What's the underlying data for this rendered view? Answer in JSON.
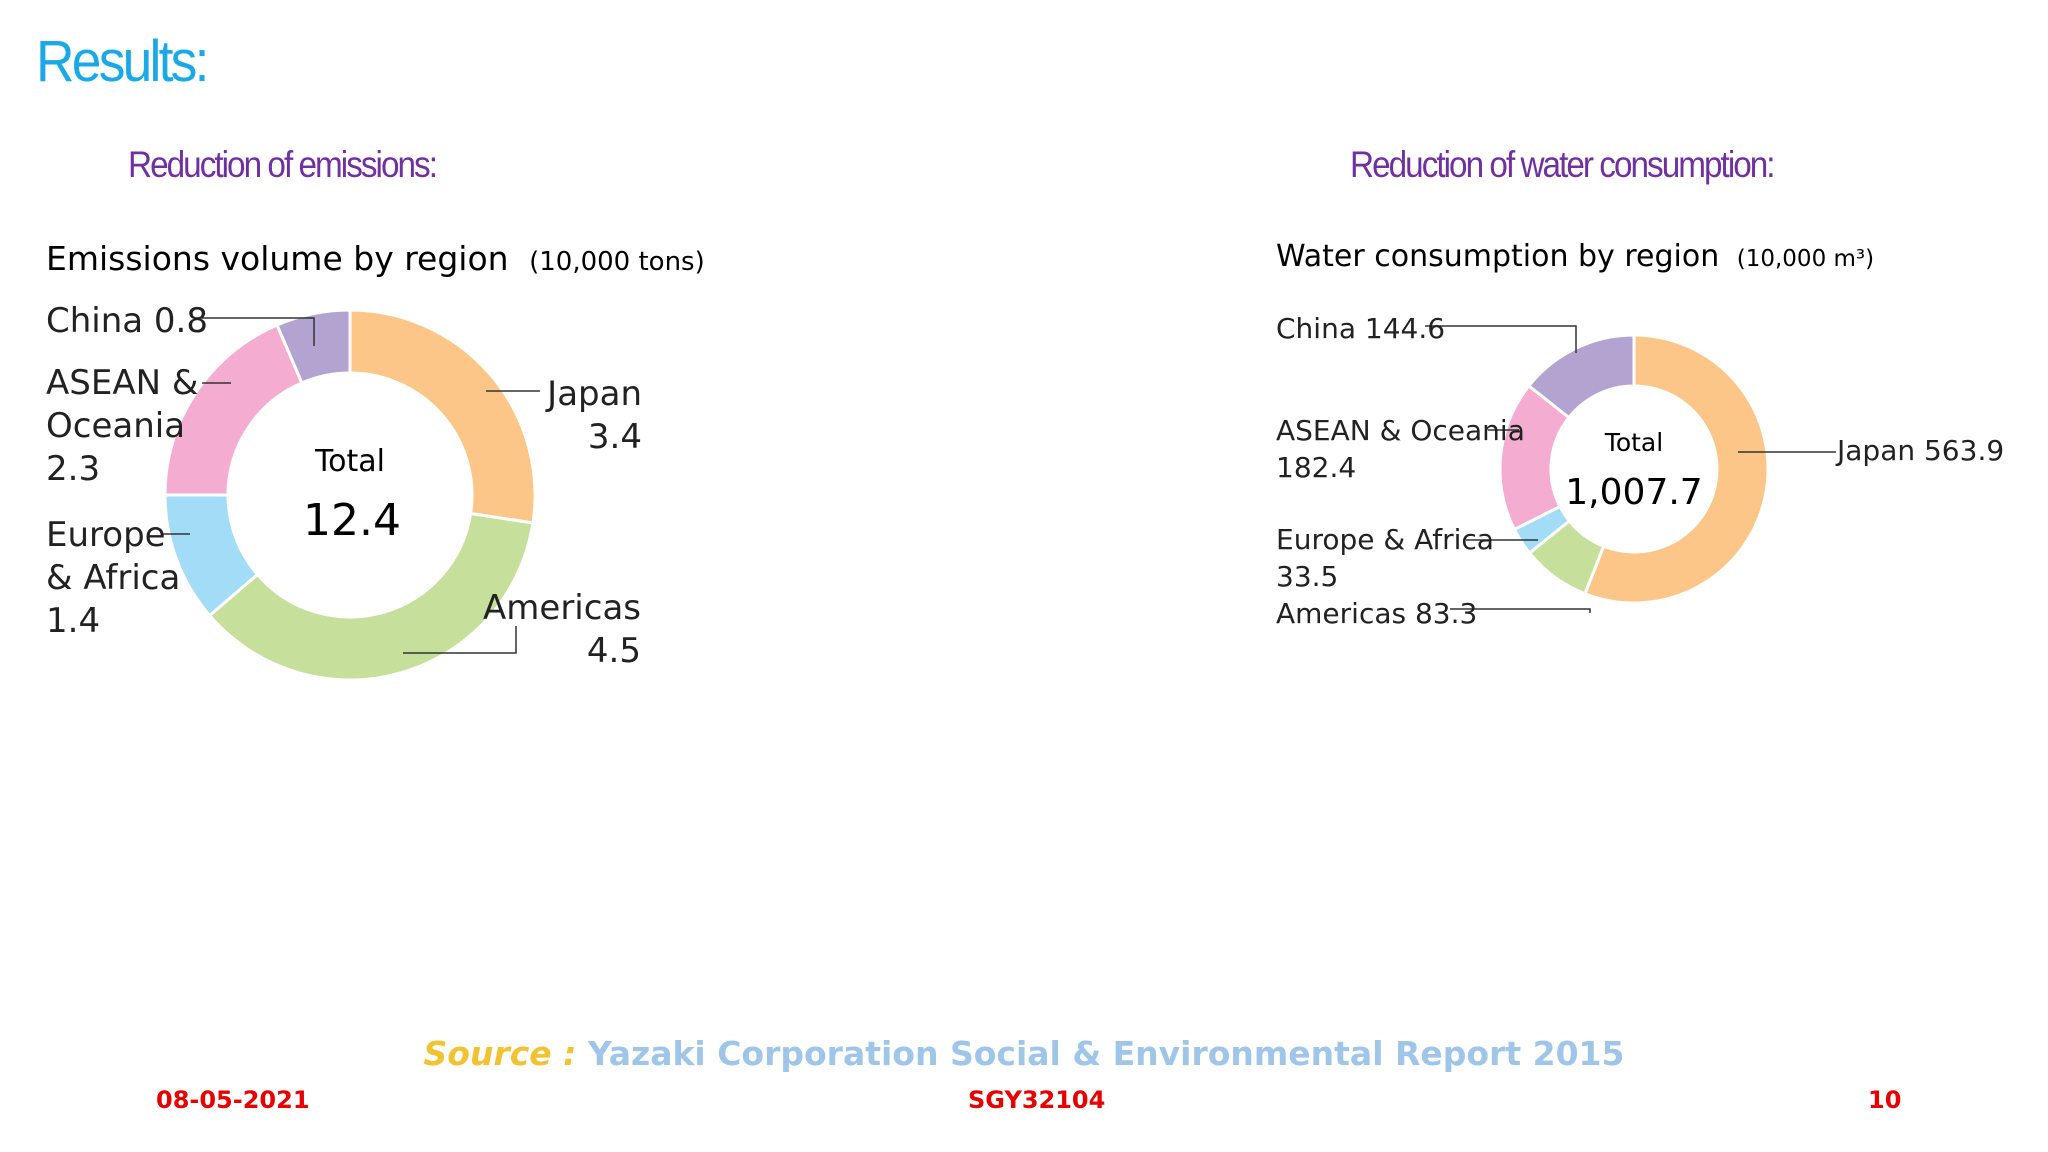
{
  "slide": {
    "title": "Results:",
    "title_color": "#1aa9e6",
    "heading_color": "#7030a0",
    "label_color": "#222222",
    "leader_color": "#333333"
  },
  "charts": [
    {
      "heading": "Reduction of emissions:",
      "chart_title": "Emissions volume by region",
      "chart_unit": "(10,000 tons)",
      "center_label": "Total",
      "center_value": "12.4"
    },
    {
      "heading": "Reduction of water consumption:",
      "chart_title": "Water consumption by region",
      "chart_unit": "(10,000 m³)",
      "center_label": "Total",
      "center_value": "1,007.7"
    }
  ],
  "chart_data": [
    {
      "type": "pie",
      "title": "Emissions volume by region",
      "unit": "(10,000 tons)",
      "total": 12.4,
      "slices": [
        {
          "name": "Japan",
          "value": 3.4,
          "color": "#fdc689"
        },
        {
          "name": "Americas",
          "value": 4.5,
          "color": "#c6df9b"
        },
        {
          "name": "Europe & Africa",
          "value": 1.4,
          "color": "#a3dcf6"
        },
        {
          "name": "ASEAN & Oceania",
          "value": 2.3,
          "color": "#f4add0"
        },
        {
          "name": "China",
          "value": 0.8,
          "color": "#b3a3d0"
        }
      ],
      "labels": [
        {
          "lines": [
            "Japan",
            "3.4"
          ]
        },
        {
          "lines": [
            "Americas",
            "4.5"
          ]
        },
        {
          "lines": [
            "Europe",
            "& Africa",
            "1.4"
          ]
        },
        {
          "lines": [
            "ASEAN &",
            "Oceania",
            "2.3"
          ]
        },
        {
          "lines": [
            "China 0.8"
          ]
        }
      ]
    },
    {
      "type": "pie",
      "title": "Water consumption by region",
      "unit": "(10,000 m³)",
      "total": 1007.7,
      "slices": [
        {
          "name": "Japan",
          "value": 563.9,
          "color": "#fdc689"
        },
        {
          "name": "Americas",
          "value": 83.3,
          "color": "#c6df9b"
        },
        {
          "name": "Europe & Africa",
          "value": 33.5,
          "color": "#a3dcf6"
        },
        {
          "name": "ASEAN & Oceania",
          "value": 182.4,
          "color": "#f4add0"
        },
        {
          "name": "China",
          "value": 144.6,
          "color": "#b3a3d0"
        }
      ],
      "labels": [
        {
          "lines": [
            "Japan 563.9"
          ]
        },
        {
          "lines": [
            "Americas 83.3"
          ]
        },
        {
          "lines": [
            "Europe & Africa",
            "33.5"
          ]
        },
        {
          "lines": [
            "ASEAN & Oceania",
            "182.4"
          ]
        },
        {
          "lines": [
            "China 144.6"
          ]
        }
      ]
    }
  ],
  "footer": {
    "source_label": "Source :",
    "source_text": "Yazaki Corporation Social & Environmental Report 2015",
    "source_label_color": "#f1c232",
    "source_text_color": "#9fc5e8",
    "date": "08-05-2021",
    "code": "SGY32104",
    "page": "10",
    "footer_color": "#e60000"
  }
}
